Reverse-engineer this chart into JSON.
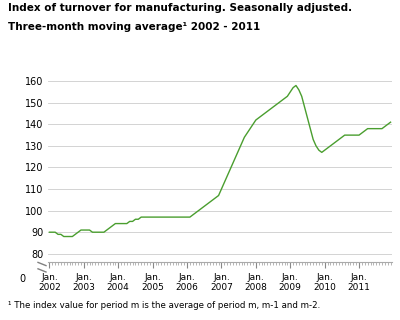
{
  "title_line1": "Index of turnover for manufacturing. Seasonally adjusted.",
  "title_line2": "Three-month moving average¹ 2002 - 2011",
  "footnote": "¹ The index value for period m is the average of period m, m-1 and m-2.",
  "line_color": "#4a9e2f",
  "background_color": "#ffffff",
  "grid_color": "#cccccc",
  "x_labels": [
    "Jan.\n2002",
    "Jan.\n2003",
    "Jan.\n2004",
    "Jan.\n2005",
    "Jan.\n2006",
    "Jan.\n2007",
    "Jan.\n2008",
    "Jan.\n2009",
    "Jan.\n2010",
    "Jan.\n2011"
  ],
  "yticks_main": [
    80,
    90,
    100,
    110,
    120,
    130,
    140,
    150,
    160
  ],
  "series": [
    90,
    90,
    90,
    89,
    89,
    88,
    88,
    88,
    88,
    89,
    90,
    91,
    91,
    91,
    91,
    90,
    90,
    90,
    90,
    90,
    91,
    92,
    93,
    94,
    94,
    94,
    94,
    94,
    95,
    95,
    96,
    96,
    97,
    97,
    97,
    97,
    97,
    97,
    97,
    97,
    97,
    97,
    97,
    97,
    97,
    97,
    97,
    97,
    97,
    97,
    98,
    99,
    100,
    101,
    102,
    103,
    104,
    105,
    106,
    107,
    110,
    113,
    116,
    119,
    122,
    125,
    128,
    131,
    134,
    136,
    138,
    140,
    142,
    143,
    144,
    145,
    146,
    147,
    148,
    149,
    150,
    151,
    152,
    153,
    155,
    157,
    158,
    156,
    153,
    148,
    143,
    138,
    133,
    130,
    128,
    127,
    128,
    129,
    130,
    131,
    132,
    133,
    134,
    135,
    135,
    135,
    135,
    135,
    135,
    136,
    137,
    138,
    138,
    138,
    138,
    138,
    138,
    139,
    140,
    141
  ]
}
